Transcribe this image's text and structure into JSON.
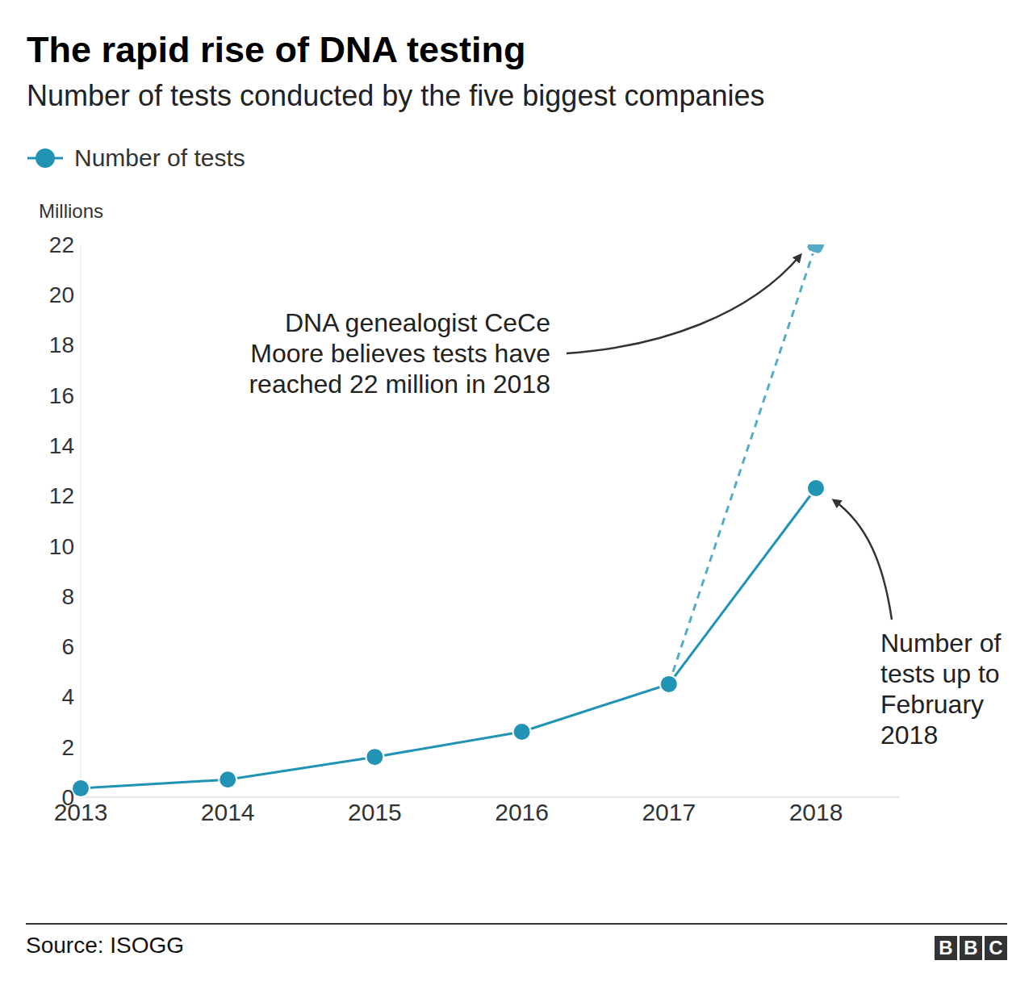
{
  "chart_data": {
    "type": "line",
    "title": "The rapid rise of DNA testing",
    "subtitle": "Number of tests conducted by the five biggest companies",
    "y_label": "Millions",
    "categories": [
      "2013",
      "2014",
      "2015",
      "2016",
      "2017",
      "2018"
    ],
    "ylim": [
      0,
      22
    ],
    "yticks": [
      0,
      2,
      4,
      6,
      8,
      10,
      12,
      14,
      16,
      18,
      20,
      22
    ],
    "grid": false,
    "legend": "top left",
    "series": [
      {
        "color": "#55acc9",
        "marker": "circle",
        "line_style": "dashed",
        "values": [
          null,
          null,
          null,
          null,
          4.5,
          22
        ]
      },
      {
        "name": "Number of tests",
        "color": "#2193b5",
        "marker": "circle",
        "line_style": "solid",
        "values": [
          0.35,
          0.7,
          1.6,
          2.6,
          4.5,
          12.3
        ]
      }
    ],
    "annotations": [
      {
        "text": [
          "DNA genealogist CeCe",
          "Moore believes tests have",
          "reached 22 million in 2018"
        ]
      },
      {
        "text": [
          "Number of",
          "tests up to",
          "February",
          "2018"
        ]
      }
    ],
    "source": "Source: ISOGG",
    "logo": "BBC"
  }
}
